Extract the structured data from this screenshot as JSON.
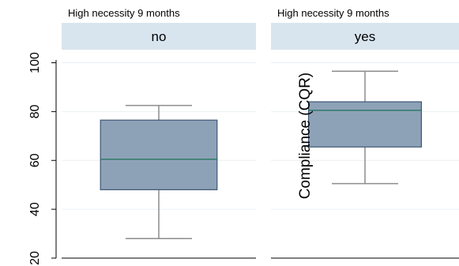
{
  "chart_data": {
    "type": "boxplot",
    "panel_title": "High necessity 9 months",
    "ylabel": "Compliance (CQR)",
    "ylim": [
      20,
      105
    ],
    "yticks": [
      20,
      40,
      60,
      80,
      100
    ],
    "grid": true,
    "colors": {
      "box_fill": "#8ea2b7",
      "box_stroke": "#3f5775",
      "median": "#2f7a6a",
      "whisker": "#8c8c8c",
      "strip": "#d9e5ee",
      "plot_bg": "#ffffff",
      "grid": "#eaf0f4"
    },
    "panels": [
      {
        "strip": "no",
        "title": "High necessity 9 months",
        "whisker_low": 28,
        "q1": 48,
        "median": 60.5,
        "q3": 76.5,
        "whisker_high": 82.5
      },
      {
        "strip": "yes",
        "title": "High necessity 9 months",
        "whisker_low": 50.5,
        "q1": 65.5,
        "median": 80.5,
        "q3": 84,
        "whisker_high": 96.5
      }
    ]
  }
}
